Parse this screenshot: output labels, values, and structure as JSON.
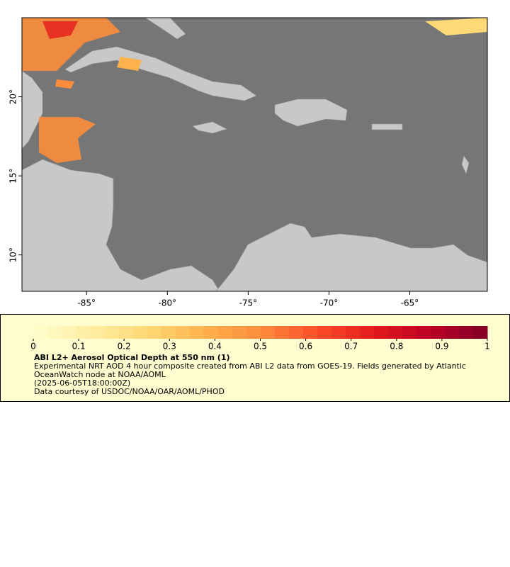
{
  "map": {
    "xlim": [
      -89,
      -60.2
    ],
    "ylim": [
      7.7,
      25
    ],
    "xticks": [
      {
        "value": -85,
        "label": "-85°"
      },
      {
        "value": -80,
        "label": "-80°"
      },
      {
        "value": -75,
        "label": "-75°"
      },
      {
        "value": -70,
        "label": "-70°"
      },
      {
        "value": -65,
        "label": "-65°"
      }
    ],
    "yticks": [
      {
        "value": 20,
        "label": "20°"
      },
      {
        "value": 15,
        "label": "15°"
      },
      {
        "value": 10,
        "label": "10°"
      }
    ]
  },
  "colorbar": {
    "lim": [
      0,
      1
    ],
    "ticks": [
      0,
      0.1,
      0.2,
      0.3,
      0.4,
      0.5,
      0.6,
      0.7,
      0.8,
      0.9,
      1
    ],
    "colormap": [
      "#ffffcc",
      "#ffeda0",
      "#fed976",
      "#feb24c",
      "#fd8d3c",
      "#fc4e2a",
      "#e31a1c",
      "#bd0026",
      "#800026"
    ]
  },
  "caption": {
    "title": "ABI L2+ Aerosol Optical Depth at 550 nm (1)",
    "lines": [
      "Experimental NRT AOD 4 hour composite created from ABI L2 data from GOES-19. Fields generated by Atlantic OceanWatch node at NOAA/AOML",
      "(2025-06-05T18:00:00Z)",
      "Data courtesy of USDOC/NOAA/OAR/AOML/PHOD"
    ]
  }
}
